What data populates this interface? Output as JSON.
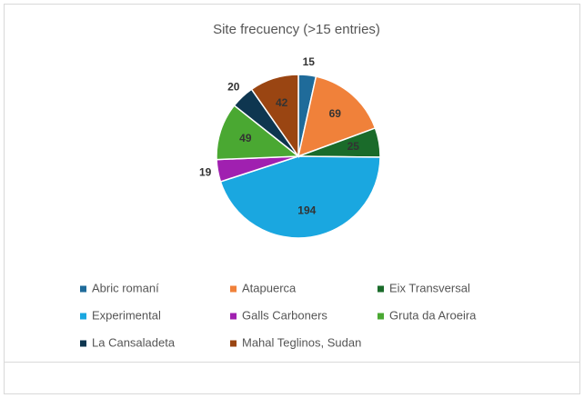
{
  "chart_data": {
    "type": "pie",
    "title": "Site frecuency (>15 entries)",
    "categories": [
      "Abric romaní",
      "Atapuerca",
      "Eix Transversal",
      "Experimental",
      "Galls Carboners",
      "Gruta da Aroeira",
      "La Cansaladeta",
      "Mahal Teglinos, Sudan"
    ],
    "values": [
      15,
      69,
      25,
      194,
      19,
      49,
      20,
      42
    ],
    "colors": [
      "#1f6b9a",
      "#f0813a",
      "#1a6b2a",
      "#1aa7e0",
      "#a020b0",
      "#4aa832",
      "#0e3650",
      "#9a4512"
    ],
    "legend": "bottom"
  }
}
